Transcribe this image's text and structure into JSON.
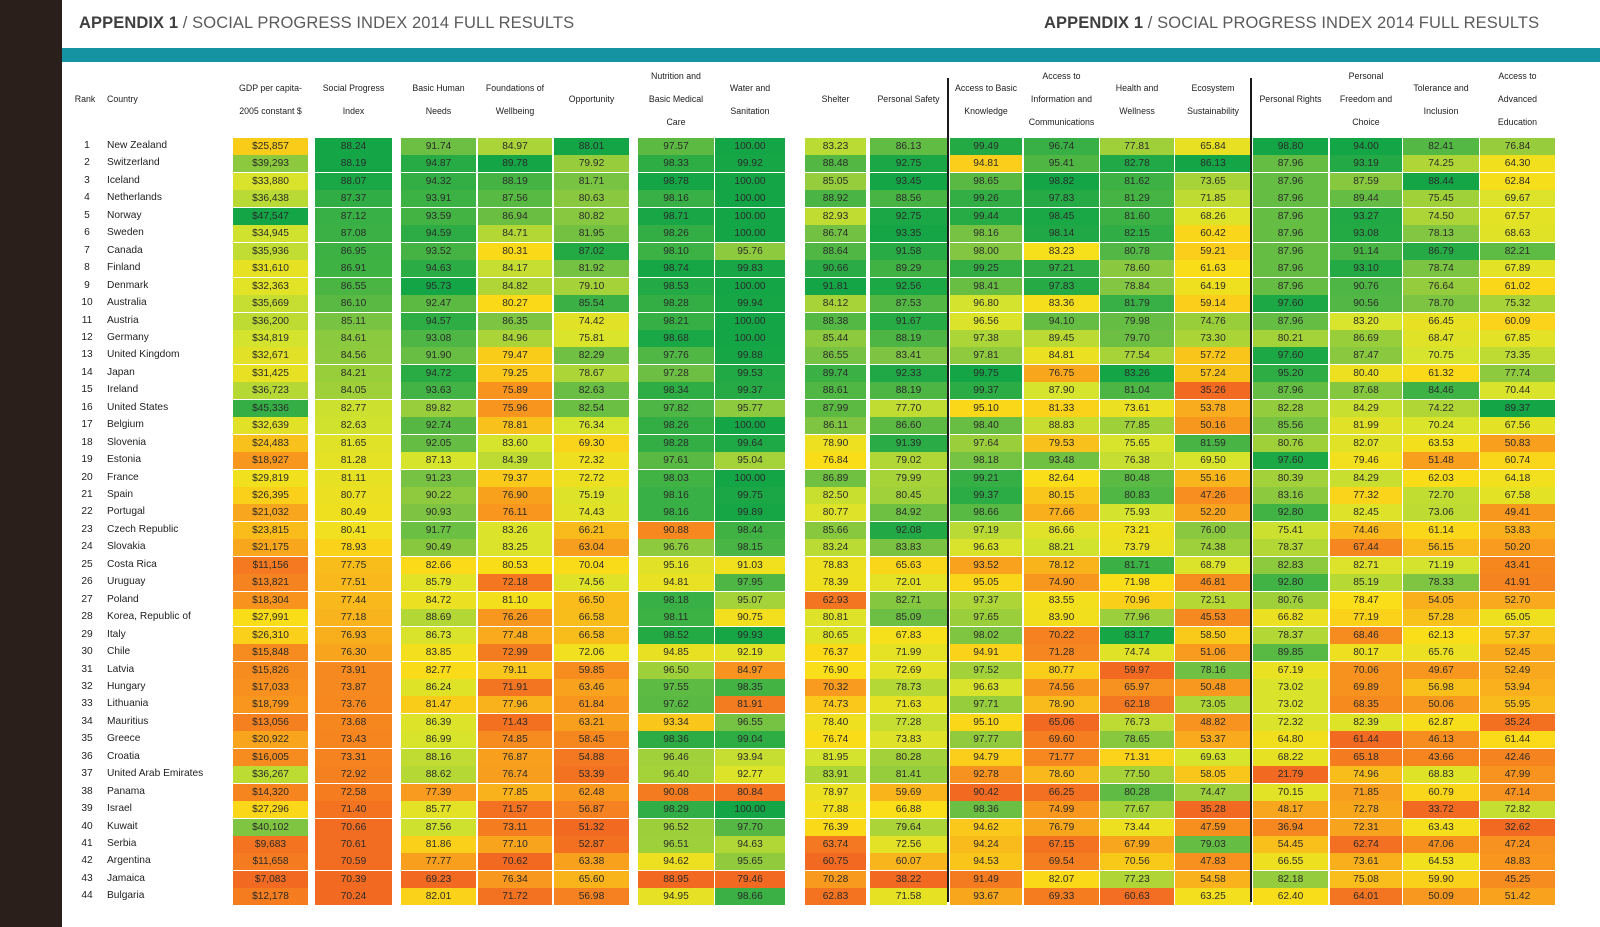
{
  "header": {
    "left": {
      "bold": "APPENDIX 1",
      "rest": " / SOCIAL PROGRESS INDEX 2014 FULL RESULTS"
    },
    "right": {
      "bold": "APPENDIX 1",
      "rest": " / SOCIAL PROGRESS INDEX 2014 FULL RESULTS"
    }
  },
  "table": {
    "rank_header": "Rank",
    "country_header": "Country",
    "columns": [
      {
        "label": "GDP per capita-\n2005 constant $"
      },
      {
        "label": "Social Progress\nIndex"
      },
      {
        "label": "Basic Human\nNeeds"
      },
      {
        "label": "Foundations of\nWellbeing"
      },
      {
        "label": "Opportunity"
      },
      {
        "label": "Nutrition and\nBasic Medical\nCare"
      },
      {
        "label": "Water and\nSanitation"
      },
      {
        "label": "Shelter"
      },
      {
        "label": "Personal Safety"
      },
      {
        "label": "Access to Basic\nKnowledge"
      },
      {
        "label": "Access to\nInformation and\nCommunications"
      },
      {
        "label": "Health and\nWellness"
      },
      {
        "label": "Ecosystem\nSustainability"
      },
      {
        "label": "Personal Rights"
      },
      {
        "label": "Personal\nFreedom and\nChoice"
      },
      {
        "label": "Tolerance and\nInclusion"
      },
      {
        "label": "Access to\nAdvanced\nEducation"
      }
    ],
    "rows": [
      {
        "rank": "1",
        "country": "New Zealand",
        "v": [
          "$25,857",
          "88.24",
          "91.74",
          "84.97",
          "88.01",
          "97.57",
          "100.00",
          "83.23",
          "86.13",
          "99.49",
          "96.74",
          "77.81",
          "65.84",
          "98.80",
          "94.00",
          "82.41",
          "76.84"
        ]
      },
      {
        "rank": "2",
        "country": "Switzerland",
        "v": [
          "$39,293",
          "88.19",
          "94.87",
          "89.78",
          "79.92",
          "98.33",
          "99.92",
          "88.48",
          "92.75",
          "94.81",
          "95.41",
          "82.78",
          "86.13",
          "87.96",
          "93.19",
          "74.25",
          "64.30"
        ]
      },
      {
        "rank": "3",
        "country": "Iceland",
        "v": [
          "$33,880",
          "88.07",
          "94.32",
          "88.19",
          "81.71",
          "98.78",
          "100.00",
          "85.05",
          "93.45",
          "98.65",
          "98.82",
          "81.62",
          "73.65",
          "87.96",
          "87.59",
          "88.44",
          "62.84"
        ]
      },
      {
        "rank": "4",
        "country": "Netherlands",
        "v": [
          "$36,438",
          "87.37",
          "93.91",
          "87.56",
          "80.63",
          "98.16",
          "100.00",
          "88.92",
          "88.56",
          "99.26",
          "97.83",
          "81.29",
          "71.85",
          "87.96",
          "89.44",
          "75.45",
          "69.67"
        ]
      },
      {
        "rank": "5",
        "country": "Norway",
        "v": [
          "$47,547",
          "87.12",
          "93.59",
          "86.94",
          "80.82",
          "98.71",
          "100.00",
          "82.93",
          "92.75",
          "99.44",
          "98.45",
          "81.60",
          "68.26",
          "87.96",
          "93.27",
          "74.50",
          "67.57"
        ]
      },
      {
        "rank": "6",
        "country": "Sweden",
        "v": [
          "$34,945",
          "87.08",
          "94.59",
          "84.71",
          "81.95",
          "98.26",
          "100.00",
          "86.74",
          "93.35",
          "98.16",
          "98.14",
          "82.15",
          "60.42",
          "87.96",
          "93.08",
          "78.13",
          "68.63"
        ]
      },
      {
        "rank": "7",
        "country": "Canada",
        "v": [
          "$35,936",
          "86.95",
          "93.52",
          "80.31",
          "87.02",
          "98.10",
          "95.76",
          "88.64",
          "91.58",
          "98.00",
          "83.23",
          "80.78",
          "59.21",
          "87.96",
          "91.14",
          "86.79",
          "82.21"
        ]
      },
      {
        "rank": "8",
        "country": "Finland",
        "v": [
          "$31,610",
          "86.91",
          "94.63",
          "84.17",
          "81.92",
          "98.74",
          "99.83",
          "90.66",
          "89.29",
          "99.25",
          "97.21",
          "78.60",
          "61.63",
          "87.96",
          "93.10",
          "78.74",
          "67.89"
        ]
      },
      {
        "rank": "9",
        "country": "Denmark",
        "v": [
          "$32,363",
          "86.55",
          "95.73",
          "84.82",
          "79.10",
          "98.53",
          "100.00",
          "91.81",
          "92.56",
          "98.41",
          "97.83",
          "78.84",
          "64.19",
          "87.96",
          "90.76",
          "76.64",
          "61.02"
        ]
      },
      {
        "rank": "10",
        "country": "Australia",
        "v": [
          "$35,669",
          "86.10",
          "92.47",
          "80.27",
          "85.54",
          "98.28",
          "99.94",
          "84.12",
          "87.53",
          "96.80",
          "83.36",
          "81.79",
          "59.14",
          "97.60",
          "90.56",
          "78.70",
          "75.32"
        ]
      },
      {
        "rank": "11",
        "country": "Austria",
        "v": [
          "$36,200",
          "85.11",
          "94.57",
          "86.35",
          "74.42",
          "98.21",
          "100.00",
          "88.38",
          "91.67",
          "96.56",
          "94.10",
          "79.98",
          "74.76",
          "87.96",
          "83.20",
          "66.45",
          "60.09"
        ]
      },
      {
        "rank": "12",
        "country": "Germany",
        "v": [
          "$34,819",
          "84.61",
          "93.08",
          "84.96",
          "75.81",
          "98.68",
          "100.00",
          "85.44",
          "88.19",
          "97.38",
          "89.45",
          "79.70",
          "73.30",
          "80.21",
          "86.69",
          "68.47",
          "67.85"
        ]
      },
      {
        "rank": "13",
        "country": "United Kingdom",
        "v": [
          "$32,671",
          "84.56",
          "91.90",
          "79.47",
          "82.29",
          "97.76",
          "99.88",
          "86.55",
          "83.41",
          "97.81",
          "84.81",
          "77.54",
          "57.72",
          "97.60",
          "87.47",
          "70.75",
          "73.35"
        ]
      },
      {
        "rank": "14",
        "country": "Japan",
        "v": [
          "$31,425",
          "84.21",
          "94.72",
          "79.25",
          "78.67",
          "97.28",
          "99.53",
          "89.74",
          "92.33",
          "99.75",
          "76.75",
          "83.26",
          "57.24",
          "95.20",
          "80.40",
          "61.32",
          "77.74"
        ]
      },
      {
        "rank": "15",
        "country": "Ireland",
        "v": [
          "$36,723",
          "84.05",
          "93.63",
          "75.89",
          "82.63",
          "98.34",
          "99.37",
          "88.61",
          "88.19",
          "99.37",
          "87.90",
          "81.04",
          "35.26",
          "87.96",
          "87.68",
          "84.46",
          "70.44"
        ]
      },
      {
        "rank": "16",
        "country": "United States",
        "v": [
          "$45,336",
          "82.77",
          "89.82",
          "75.96",
          "82.54",
          "97.82",
          "95.77",
          "87.99",
          "77.70",
          "95.10",
          "81.33",
          "73.61",
          "53.78",
          "82.28",
          "84.29",
          "74.22",
          "89.37"
        ]
      },
      {
        "rank": "17",
        "country": "Belgium",
        "v": [
          "$32,639",
          "82.63",
          "92.74",
          "78.81",
          "76.34",
          "98.26",
          "100.00",
          "86.11",
          "86.60",
          "98.40",
          "88.83",
          "77.85",
          "50.16",
          "85.56",
          "81.99",
          "70.24",
          "67.56"
        ]
      },
      {
        "rank": "18",
        "country": "Slovenia",
        "v": [
          "$24,483",
          "81.65",
          "92.05",
          "83.60",
          "69.30",
          "98.28",
          "99.64",
          "78.90",
          "91.39",
          "97.64",
          "79.53",
          "75.65",
          "81.59",
          "80.76",
          "82.07",
          "63.53",
          "50.83"
        ]
      },
      {
        "rank": "19",
        "country": "Estonia",
        "v": [
          "$18,927",
          "81.28",
          "87.13",
          "84.39",
          "72.32",
          "97.61",
          "95.04",
          "76.84",
          "79.02",
          "98.18",
          "93.48",
          "76.38",
          "69.50",
          "97.60",
          "79.46",
          "51.48",
          "60.74"
        ]
      },
      {
        "rank": "20",
        "country": "France",
        "v": [
          "$29,819",
          "81.11",
          "91.23",
          "79.37",
          "72.72",
          "98.03",
          "100.00",
          "86.89",
          "79.99",
          "99.21",
          "82.64",
          "80.48",
          "55.16",
          "80.39",
          "84.29",
          "62.03",
          "64.18"
        ]
      },
      {
        "rank": "21",
        "country": "Spain",
        "v": [
          "$26,395",
          "80.77",
          "90.22",
          "76.90",
          "75.19",
          "98.16",
          "99.75",
          "82.50",
          "80.45",
          "99.37",
          "80.15",
          "80.83",
          "47.26",
          "83.16",
          "77.32",
          "72.70",
          "67.58"
        ]
      },
      {
        "rank": "22",
        "country": "Portugal",
        "v": [
          "$21,032",
          "80.49",
          "90.93",
          "76.11",
          "74.43",
          "98.16",
          "99.89",
          "80.77",
          "84.92",
          "98.66",
          "77.66",
          "75.93",
          "52.20",
          "92.80",
          "82.45",
          "73.06",
          "49.41"
        ]
      },
      {
        "rank": "23",
        "country": "Czech Republic",
        "v": [
          "$23,815",
          "80.41",
          "91.77",
          "83.26",
          "66.21",
          "90.88",
          "98.44",
          "85.66",
          "92.08",
          "97.19",
          "86.66",
          "73.21",
          "76.00",
          "75.41",
          "74.46",
          "61.14",
          "53.83"
        ]
      },
      {
        "rank": "24",
        "country": "Slovakia",
        "v": [
          "$21,175",
          "78.93",
          "90.49",
          "83.25",
          "63.04",
          "96.76",
          "98.15",
          "83.24",
          "83.83",
          "96.63",
          "88.21",
          "73.79",
          "74.38",
          "78.37",
          "67.44",
          "56.15",
          "50.20"
        ]
      },
      {
        "rank": "25",
        "country": "Costa Rica",
        "v": [
          "$11,156",
          "77.75",
          "82.66",
          "80.53",
          "70.04",
          "95.16",
          "91.03",
          "78.83",
          "65.63",
          "93.52",
          "78.12",
          "81.71",
          "68.79",
          "82.83",
          "82.71",
          "71.19",
          "43.41"
        ]
      },
      {
        "rank": "26",
        "country": "Uruguay",
        "v": [
          "$13,821",
          "77.51",
          "85.79",
          "72.18",
          "74.56",
          "94.81",
          "97.95",
          "78.39",
          "72.01",
          "95.05",
          "74.90",
          "71.98",
          "46.81",
          "92.80",
          "85.19",
          "78.33",
          "41.91"
        ]
      },
      {
        "rank": "27",
        "country": "Poland",
        "v": [
          "$18,304",
          "77.44",
          "84.72",
          "81.10",
          "66.50",
          "98.18",
          "95.07",
          "62.93",
          "82.71",
          "97.37",
          "83.55",
          "70.96",
          "72.51",
          "80.76",
          "78.47",
          "54.05",
          "52.70"
        ]
      },
      {
        "rank": "28",
        "country": "Korea, Republic of",
        "v": [
          "$27,991",
          "77.18",
          "88.69",
          "76.26",
          "66.58",
          "98.11",
          "90.75",
          "80.81",
          "85.09",
          "97.65",
          "83.90",
          "77.96",
          "45.53",
          "66.82",
          "77.19",
          "57.28",
          "65.05"
        ]
      },
      {
        "rank": "29",
        "country": "Italy",
        "v": [
          "$26,310",
          "76.93",
          "86.73",
          "77.48",
          "66.58",
          "98.52",
          "99.93",
          "80.65",
          "67.83",
          "98.02",
          "70.22",
          "83.17",
          "58.50",
          "78.37",
          "68.46",
          "62.13",
          "57.37"
        ]
      },
      {
        "rank": "30",
        "country": "Chile",
        "v": [
          "$15,848",
          "76.30",
          "83.85",
          "72.99",
          "72.06",
          "94.85",
          "92.19",
          "76.37",
          "71.99",
          "94.91",
          "71.28",
          "74.74",
          "51.06",
          "89.85",
          "80.17",
          "65.76",
          "52.45"
        ]
      },
      {
        "rank": "31",
        "country": "Latvia",
        "v": [
          "$15,826",
          "73.91",
          "82.77",
          "79.11",
          "59.85",
          "96.50",
          "84.97",
          "76.90",
          "72.69",
          "97.52",
          "80.77",
          "59.97",
          "78.16",
          "67.19",
          "70.06",
          "49.67",
          "52.49"
        ]
      },
      {
        "rank": "32",
        "country": "Hungary",
        "v": [
          "$17,033",
          "73.87",
          "86.24",
          "71.91",
          "63.46",
          "97.55",
          "98.35",
          "70.32",
          "78.73",
          "96.63",
          "74.56",
          "65.97",
          "50.48",
          "73.02",
          "69.89",
          "56.98",
          "53.94"
        ]
      },
      {
        "rank": "33",
        "country": "Lithuania",
        "v": [
          "$18,799",
          "73.76",
          "81.47",
          "77.96",
          "61.84",
          "97.62",
          "81.91",
          "74.73",
          "71.63",
          "97.71",
          "78.90",
          "62.18",
          "73.05",
          "73.02",
          "68.35",
          "50.06",
          "55.95"
        ]
      },
      {
        "rank": "34",
        "country": "Mauritius",
        "v": [
          "$13,056",
          "73.68",
          "86.39",
          "71.43",
          "63.21",
          "93.34",
          "96.55",
          "78.40",
          "77.28",
          "95.10",
          "65.06",
          "76.73",
          "48.82",
          "72.32",
          "82.39",
          "62.87",
          "35.24"
        ]
      },
      {
        "rank": "35",
        "country": "Greece",
        "v": [
          "$20,922",
          "73.43",
          "86.99",
          "74.85",
          "58.45",
          "98.36",
          "99.04",
          "76.74",
          "73.83",
          "97.77",
          "69.60",
          "78.65",
          "53.37",
          "64.80",
          "61.44",
          "46.13",
          "61.44"
        ]
      },
      {
        "rank": "36",
        "country": "Croatia",
        "v": [
          "$16,005",
          "73.31",
          "88.16",
          "76.87",
          "54.88",
          "96.46",
          "93.94",
          "81.95",
          "80.28",
          "94.79",
          "71.77",
          "71.31",
          "69.63",
          "68.22",
          "65.18",
          "43.66",
          "42.46"
        ]
      },
      {
        "rank": "37",
        "country": "United Arab Emirates",
        "v": [
          "$36,267",
          "72.92",
          "88.62",
          "76.74",
          "53.39",
          "96.40",
          "92.77",
          "83.91",
          "81.41",
          "92.78",
          "78.60",
          "77.50",
          "58.05",
          "21.79",
          "74.96",
          "68.83",
          "47.99"
        ]
      },
      {
        "rank": "38",
        "country": "Panama",
        "v": [
          "$14,320",
          "72.58",
          "77.39",
          "77.85",
          "62.48",
          "90.08",
          "80.84",
          "78.97",
          "59.69",
          "90.42",
          "66.25",
          "80.28",
          "74.47",
          "70.15",
          "71.85",
          "60.79",
          "47.14"
        ]
      },
      {
        "rank": "39",
        "country": "Israel",
        "v": [
          "$27,296",
          "71.40",
          "85.77",
          "71.57",
          "56.87",
          "98.29",
          "100.00",
          "77.88",
          "66.88",
          "98.36",
          "74.99",
          "77.67",
          "35.28",
          "48.17",
          "72.78",
          "33.72",
          "72.82"
        ]
      },
      {
        "rank": "40",
        "country": "Kuwait",
        "v": [
          "$40,102",
          "70.66",
          "87.56",
          "73.11",
          "51.32",
          "96.52",
          "97.70",
          "76.39",
          "79.64",
          "94.62",
          "76.79",
          "73.44",
          "47.59",
          "36.94",
          "72.31",
          "63.43",
          "32.62"
        ]
      },
      {
        "rank": "41",
        "country": "Serbia",
        "v": [
          "$9,683",
          "70.61",
          "81.86",
          "77.10",
          "52.87",
          "96.51",
          "94.63",
          "63.74",
          "72.56",
          "94.24",
          "67.15",
          "67.99",
          "79.03",
          "54.45",
          "62.74",
          "47.06",
          "47.24"
        ]
      },
      {
        "rank": "42",
        "country": "Argentina",
        "v": [
          "$11,658",
          "70.59",
          "77.77",
          "70.62",
          "63.38",
          "94.62",
          "95.65",
          "60.75",
          "60.07",
          "94.53",
          "69.54",
          "70.56",
          "47.83",
          "66.55",
          "73.61",
          "64.53",
          "48.83"
        ]
      },
      {
        "rank": "43",
        "country": "Jamaica",
        "v": [
          "$7,083",
          "70.39",
          "69.23",
          "76.34",
          "65.60",
          "88.95",
          "79.46",
          "70.28",
          "38.22",
          "91.49",
          "82.07",
          "77.23",
          "54.58",
          "82.18",
          "75.08",
          "59.90",
          "45.25"
        ]
      },
      {
        "rank": "44",
        "country": "Bulgaria",
        "v": [
          "$12,178",
          "70.24",
          "82.01",
          "71.72",
          "56.98",
          "94.95",
          "98.66",
          "62.83",
          "71.58",
          "93.67",
          "69.33",
          "60.63",
          "63.25",
          "62.40",
          "64.01",
          "50.09",
          "51.42"
        ]
      }
    ]
  }
}
